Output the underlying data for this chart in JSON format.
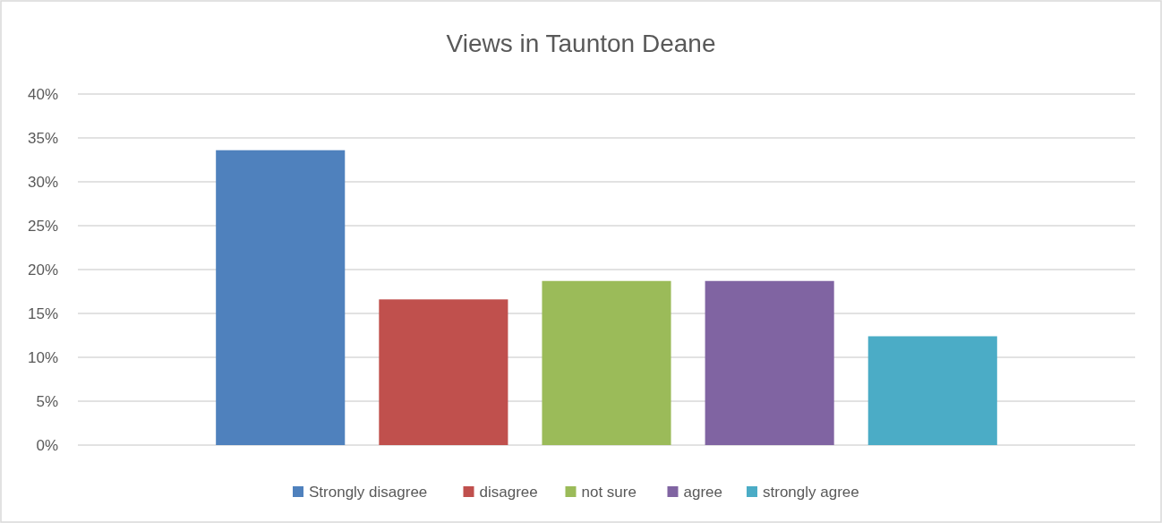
{
  "chart_data": {
    "type": "bar",
    "title": "Views in Taunton Deane",
    "categories": [
      null
    ],
    "series": [
      {
        "name": "Strongly disagree",
        "color": "#4f81bd",
        "values": [
          33.6
        ]
      },
      {
        "name": "disagree",
        "color": "#c0504d",
        "values": [
          16.6
        ]
      },
      {
        "name": "not sure",
        "color": "#9bbb59",
        "values": [
          18.7
        ]
      },
      {
        "name": "agree",
        "color": "#8064a2",
        "values": [
          18.7
        ]
      },
      {
        "name": "strongly agree",
        "color": "#4bacc6",
        "values": [
          12.4
        ]
      }
    ],
    "ylim": [
      0,
      40
    ],
    "yticks": [
      {
        "value": 0,
        "label": "0%"
      },
      {
        "value": 5,
        "label": "5%"
      },
      {
        "value": 10,
        "label": "10%"
      },
      {
        "value": 15,
        "label": "15%"
      },
      {
        "value": 20,
        "label": "20%"
      },
      {
        "value": 25,
        "label": "25%"
      },
      {
        "value": 30,
        "label": "30%"
      },
      {
        "value": 35,
        "label": "35%"
      },
      {
        "value": 40,
        "label": "40%"
      }
    ],
    "grid": "y",
    "legend": "bottom",
    "tick_labels": "y"
  }
}
